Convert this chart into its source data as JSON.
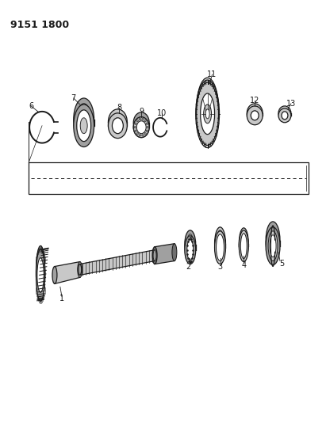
{
  "title": "9151 1800",
  "bg_color": "#ffffff",
  "line_color": "#1a1a1a",
  "fig_width": 4.11,
  "fig_height": 5.33,
  "dpi": 100,
  "gray_light": "#c8c8c8",
  "gray_mid": "#a0a0a0",
  "gray_dark": "#707070"
}
